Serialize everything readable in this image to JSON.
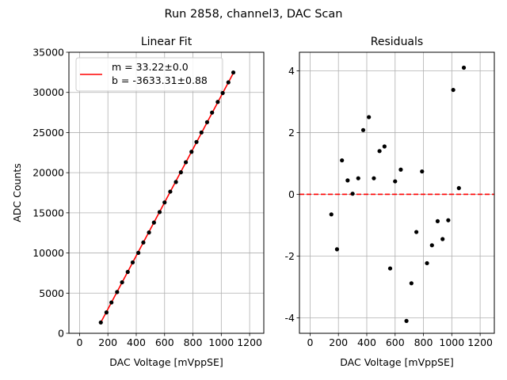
{
  "suptitle": "Run 2858, channel3, DAC Scan",
  "chart_data": [
    {
      "type": "scatter",
      "title": "Linear Fit",
      "xlabel": "DAC Voltage [mVppSE]",
      "ylabel": "ADC Counts",
      "xlim": [
        -75,
        1300
      ],
      "ylim": [
        0,
        35000
      ],
      "xticks": [
        0,
        200,
        400,
        600,
        800,
        1000,
        1200
      ],
      "yticks": [
        0,
        5000,
        10000,
        15000,
        20000,
        25000,
        30000,
        35000
      ],
      "grid": true,
      "legend": {
        "placement": "upper-left",
        "line_label": "m = 33.22±0.0",
        "extra_label": "b = -3633.31±0.88",
        "line_color": "#ff0000"
      },
      "fit": {
        "slope": 33.22,
        "intercept": -3633.31,
        "x_range": [
          150,
          1090
        ],
        "color": "#ff0000"
      },
      "points": [
        [
          150,
          1350
        ],
        [
          190,
          2600
        ],
        [
          225,
          3840
        ],
        [
          265,
          5140
        ],
        [
          300,
          6350
        ],
        [
          340,
          7640
        ],
        [
          375,
          8830
        ],
        [
          415,
          10020
        ],
        [
          450,
          11310
        ],
        [
          490,
          12560
        ],
        [
          525,
          13790
        ],
        [
          565,
          15100
        ],
        [
          600,
          16300
        ],
        [
          640,
          17640
        ],
        [
          680,
          18840
        ],
        [
          715,
          20050
        ],
        [
          750,
          21300
        ],
        [
          790,
          22600
        ],
        [
          825,
          23830
        ],
        [
          860,
          25010
        ],
        [
          900,
          26290
        ],
        [
          935,
          27490
        ],
        [
          975,
          28810
        ],
        [
          1010,
          29920
        ],
        [
          1050,
          31250
        ],
        [
          1085,
          32480
        ]
      ],
      "point_color": "#000000"
    },
    {
      "type": "scatter",
      "title": "Residuals",
      "xlabel": "DAC Voltage [mVppSE]",
      "ylabel": "",
      "xlim": [
        -75,
        1300
      ],
      "ylim": [
        -4.5,
        4.6
      ],
      "xticks": [
        0,
        200,
        400,
        600,
        800,
        1000,
        1200
      ],
      "yticks": [
        -4,
        -2,
        0,
        2,
        4
      ],
      "grid": true,
      "zero_line_color": "#ff0000",
      "points": [
        [
          150,
          -0.65
        ],
        [
          190,
          -1.78
        ],
        [
          225,
          1.1
        ],
        [
          265,
          0.45
        ],
        [
          300,
          0.02
        ],
        [
          340,
          0.52
        ],
        [
          375,
          2.08
        ],
        [
          415,
          2.5
        ],
        [
          450,
          0.52
        ],
        [
          490,
          1.4
        ],
        [
          525,
          1.55
        ],
        [
          565,
          -2.4
        ],
        [
          600,
          0.42
        ],
        [
          640,
          0.8
        ],
        [
          680,
          -4.1
        ],
        [
          715,
          -2.88
        ],
        [
          750,
          -1.22
        ],
        [
          790,
          0.74
        ],
        [
          825,
          -2.23
        ],
        [
          860,
          -1.65
        ],
        [
          900,
          -0.87
        ],
        [
          935,
          -1.45
        ],
        [
          975,
          -0.84
        ],
        [
          1010,
          3.38
        ],
        [
          1050,
          0.2
        ],
        [
          1085,
          4.1
        ]
      ],
      "point_color": "#000000"
    }
  ]
}
